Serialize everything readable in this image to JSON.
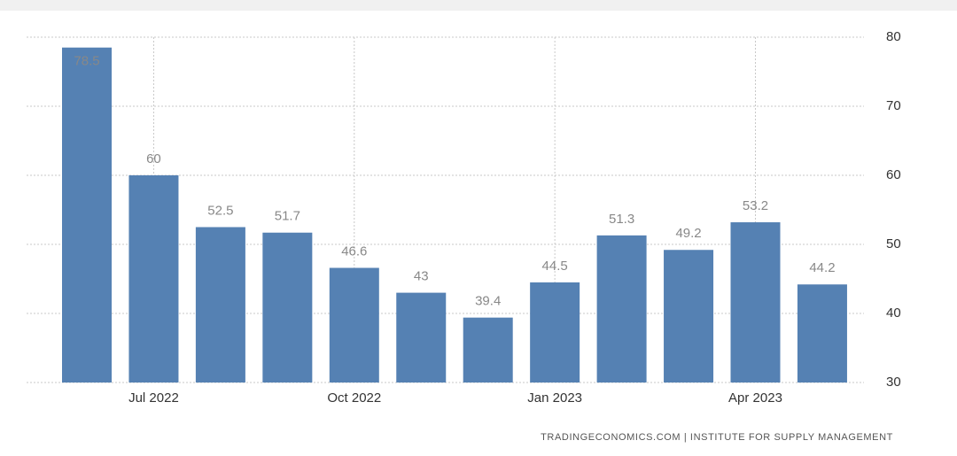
{
  "chart_data": {
    "type": "bar",
    "categories": [
      null,
      "Jul 2022",
      null,
      null,
      "Oct 2022",
      null,
      null,
      "Jan 2023",
      null,
      null,
      "Apr 2023",
      null
    ],
    "values": [
      78.5,
      60,
      52.5,
      51.7,
      46.6,
      43,
      39.4,
      44.5,
      51.3,
      49.2,
      53.2,
      44.2
    ],
    "color": "#5581b3",
    "ylim": [
      30,
      80
    ],
    "yticks": [
      30,
      40,
      50,
      60,
      70,
      80
    ],
    "grid": true,
    "source": "TRADINGECONOMICS.COM | INSTITUTE FOR SUPPLY MANAGEMENT"
  }
}
